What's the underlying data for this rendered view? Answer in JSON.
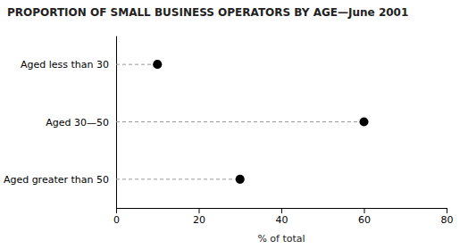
{
  "chart_data": {
    "type": "dot",
    "title": "PROPORTION OF SMALL BUSINESS OPERATORS BY AGE—June 2001",
    "categories": [
      "Aged less than 30",
      "Aged 30—50",
      "Aged greater than 50"
    ],
    "values": [
      10,
      60,
      30
    ],
    "xlim": [
      0,
      80
    ],
    "xticks": [
      0,
      20,
      40,
      60,
      80
    ],
    "xlabel": "% of total",
    "color": "#000000",
    "marker": "circle",
    "line_style": "dashed",
    "grid": false
  }
}
